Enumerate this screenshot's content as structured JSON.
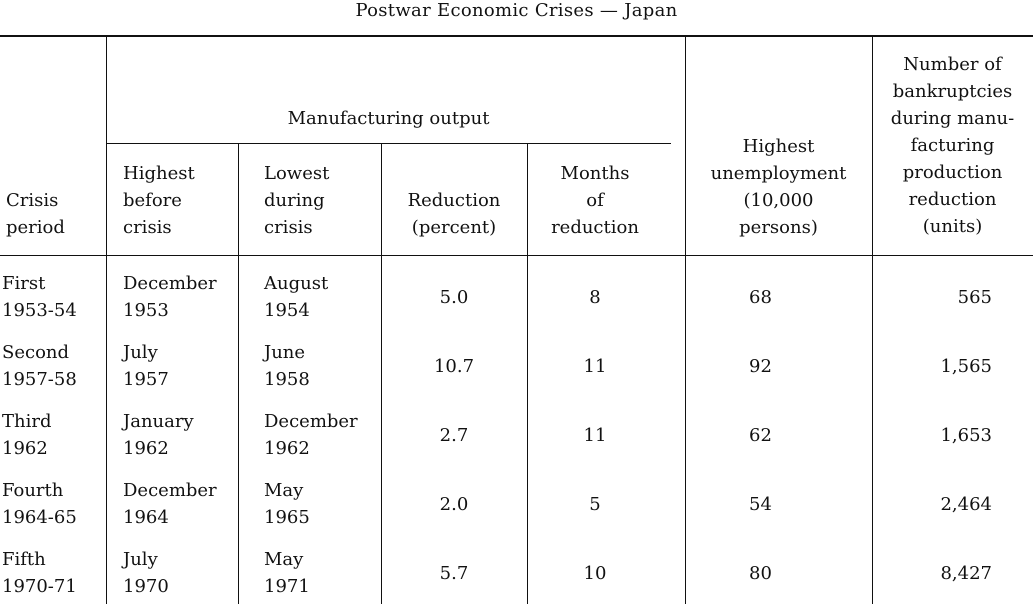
{
  "title": "Postwar Economic Crises — Japan",
  "headers": {
    "crisis_period": "Crisis\nperiod",
    "manufacturing_output": "Manufacturing output",
    "highest_before": "Highest\nbefore\ncrisis",
    "lowest_during": "Lowest\nduring\ncrisis",
    "reduction_percent": "Reduction\n(percent)",
    "months_reduction": "Months\nof\nreduction",
    "highest_unemployment": "Highest\nunemployment\n(10,000\npersons)",
    "bankruptcies": "Number of\nbankruptcies\nduring manu-\nfacturing\nproduction\nreduction\n(units)"
  },
  "rows": [
    {
      "period": "First\n1953-54",
      "highest": "December\n1953",
      "lowest": "August\n1954",
      "reduction": "5.0",
      "months": "8",
      "unemployment": "68",
      "bankruptcies": "565"
    },
    {
      "period": "Second\n1957-58",
      "highest": "July\n1957",
      "lowest": "June\n1958",
      "reduction": "10.7",
      "months": "11",
      "unemployment": "92",
      "bankruptcies": "1,565"
    },
    {
      "period": "Third\n1962",
      "highest": "January\n1962",
      "lowest": "December\n1962",
      "reduction": "2.7",
      "months": "11",
      "unemployment": "62",
      "bankruptcies": "1,653"
    },
    {
      "period": "Fourth\n1964-65",
      "highest": "December\n1964",
      "lowest": "May\n1965",
      "reduction": "2.0",
      "months": "5",
      "unemployment": "54",
      "bankruptcies": "2,464"
    },
    {
      "period": "Fifth\n1970-71",
      "highest": "July\n1970",
      "lowest": "May\n1971",
      "reduction": "5.7",
      "months": "10",
      "unemployment": "80",
      "bankruptcies": "8,427"
    }
  ]
}
